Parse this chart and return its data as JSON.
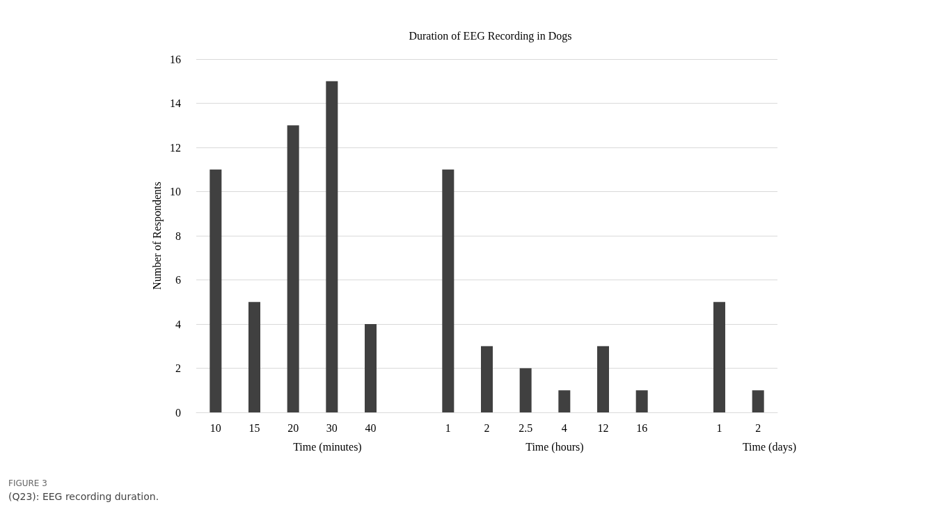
{
  "chart_data": {
    "type": "bar",
    "title": "Duration of EEG Recording in Dogs",
    "ylabel": "Number of Respondents",
    "categories": [
      "10",
      "15",
      "20",
      "30",
      "40",
      null,
      "1",
      "2",
      "2.5",
      "4",
      "12",
      "16",
      null,
      "1",
      "2"
    ],
    "values": [
      11,
      5,
      13,
      15,
      4,
      null,
      11,
      3,
      2,
      1,
      3,
      1,
      null,
      5,
      1
    ],
    "color": "#404040",
    "ylim": [
      0,
      16
    ],
    "yticks": [
      0,
      2,
      4,
      6,
      8,
      10,
      12,
      14,
      16
    ],
    "grid": "y",
    "annotations": [
      "Time (minutes)",
      "Time (hours)",
      "Time (days)",
      "FIGURE 3",
      "(Q23): EEG recording duration."
    ]
  }
}
